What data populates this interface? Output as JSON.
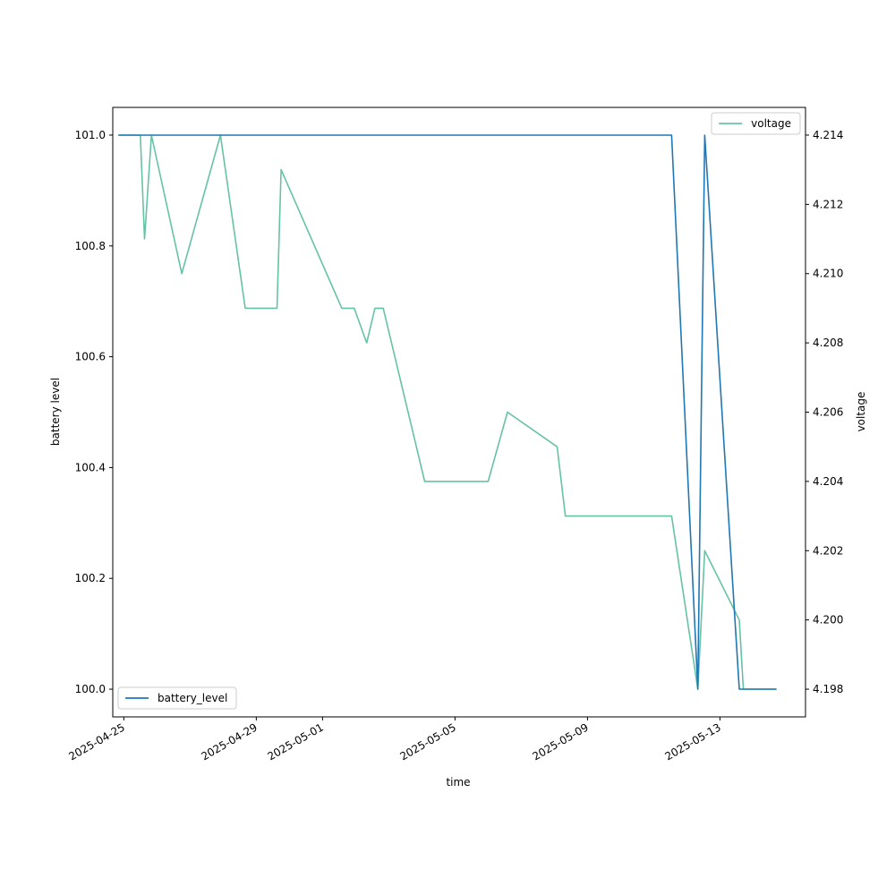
{
  "chart_data": {
    "type": "line",
    "xlabel": "time",
    "ylabel_left": "battery level",
    "ylabel_right": "voltage",
    "x_range": [
      "2025-04-24T16:00",
      "2025-05-15T14:00"
    ],
    "x_ticks": [
      "2025-04-25",
      "2025-04-29",
      "2025-05-01",
      "2025-05-05",
      "2025-05-09",
      "2025-05-13"
    ],
    "y_left_range": [
      99.95,
      101.05
    ],
    "y_left_ticks": [
      "100.0",
      "100.2",
      "100.4",
      "100.6",
      "100.8",
      "101.0"
    ],
    "y_right_range": [
      4.1972,
      4.2148
    ],
    "y_right_ticks": [
      "4.198",
      "4.200",
      "4.202",
      "4.204",
      "4.206",
      "4.208",
      "4.210",
      "4.212",
      "4.214"
    ],
    "grid": false,
    "series": [
      {
        "name": "battery_level",
        "axis": "left",
        "color": "#1f77b4",
        "legend_position": "lower-left",
        "points": [
          [
            "2025-04-24T20:00",
            101.0
          ],
          [
            "2025-05-11T13:00",
            101.0
          ],
          [
            "2025-05-12T08:00",
            100.0
          ],
          [
            "2025-05-12T13:00",
            101.0
          ],
          [
            "2025-05-13T14:00",
            100.0
          ],
          [
            "2025-05-14T17:00",
            100.0
          ]
        ]
      },
      {
        "name": "voltage",
        "axis": "right",
        "color": "#66c2a5",
        "legend_position": "upper-right",
        "points": [
          [
            "2025-04-24T20:00",
            4.214
          ],
          [
            "2025-04-25T12:00",
            4.214
          ],
          [
            "2025-04-25T15:00",
            4.211
          ],
          [
            "2025-04-25T20:00",
            4.214
          ],
          [
            "2025-04-26T18:00",
            4.21
          ],
          [
            "2025-04-27T22:00",
            4.214
          ],
          [
            "2025-04-28T16:00",
            4.209
          ],
          [
            "2025-04-29T15:00",
            4.209
          ],
          [
            "2025-04-29T18:00",
            4.213
          ],
          [
            "2025-05-01T14:00",
            4.209
          ],
          [
            "2025-05-01T23:00",
            4.209
          ],
          [
            "2025-05-02T08:00",
            4.208
          ],
          [
            "2025-05-02T14:00",
            4.209
          ],
          [
            "2025-05-02T20:00",
            4.209
          ],
          [
            "2025-05-04T02:00",
            4.204
          ],
          [
            "2025-05-06T00:00",
            4.204
          ],
          [
            "2025-05-06T14:00",
            4.206
          ],
          [
            "2025-05-08T02:00",
            4.205
          ],
          [
            "2025-05-08T08:00",
            4.203
          ],
          [
            "2025-05-11T13:00",
            4.203
          ],
          [
            "2025-05-12T08:00",
            4.198
          ],
          [
            "2025-05-12T13:00",
            4.202
          ],
          [
            "2025-05-13T14:00",
            4.2
          ],
          [
            "2025-05-13T17:00",
            4.198
          ],
          [
            "2025-05-14T17:00",
            4.198
          ]
        ]
      }
    ]
  }
}
